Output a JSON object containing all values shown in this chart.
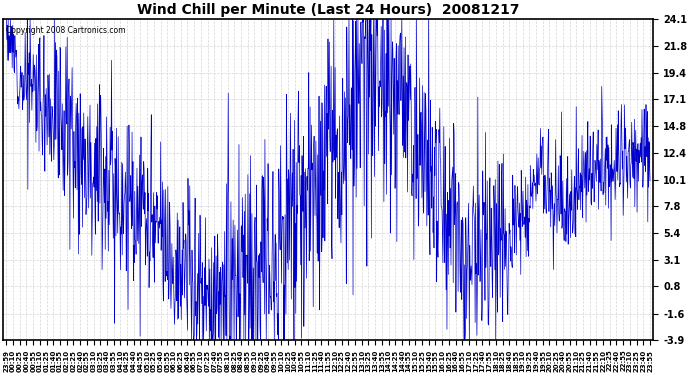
{
  "title": "Wind Chill per Minute (Last 24 Hours)  20081217",
  "copyright_text": "Copyright 2008 Cartronics.com",
  "line_color": "#0000CC",
  "background_color": "#ffffff",
  "plot_bg_color": "#ffffff",
  "grid_color": "#cccccc",
  "yticks": [
    24.1,
    21.8,
    19.4,
    17.1,
    14.8,
    12.4,
    10.1,
    7.8,
    5.4,
    3.1,
    0.8,
    -1.6,
    -3.9
  ],
  "ylim": [
    -3.9,
    24.1
  ],
  "xtick_labels": [
    "23:59",
    "00:10",
    "00:25",
    "00:40",
    "00:55",
    "01:10",
    "01:25",
    "01:40",
    "01:55",
    "02:10",
    "02:25",
    "02:40",
    "02:55",
    "03:10",
    "03:25",
    "03:40",
    "03:55",
    "04:10",
    "04:25",
    "04:40",
    "04:55",
    "05:10",
    "05:25",
    "05:40",
    "05:55",
    "06:10",
    "06:25",
    "06:40",
    "06:55",
    "07:10",
    "07:25",
    "07:40",
    "07:55",
    "08:10",
    "08:25",
    "08:40",
    "08:55",
    "09:10",
    "09:25",
    "09:40",
    "09:55",
    "10:10",
    "10:25",
    "10:40",
    "10:55",
    "11:10",
    "11:25",
    "11:40",
    "11:55",
    "12:10",
    "12:25",
    "12:40",
    "12:55",
    "13:10",
    "13:25",
    "13:40",
    "13:55",
    "14:10",
    "14:25",
    "14:40",
    "14:55",
    "15:10",
    "15:25",
    "15:40",
    "15:55",
    "16:10",
    "16:25",
    "16:40",
    "16:55",
    "17:10",
    "17:25",
    "17:40",
    "17:55",
    "18:10",
    "18:25",
    "18:40",
    "18:55",
    "19:10",
    "19:25",
    "19:40",
    "19:55",
    "20:10",
    "20:25",
    "20:40",
    "20:55",
    "21:10",
    "21:25",
    "21:40",
    "21:55",
    "22:10",
    "22:25",
    "22:40",
    "22:55",
    "23:10",
    "23:25",
    "23:40",
    "23:55"
  ],
  "n_ticks": 97,
  "n_points": 1440,
  "seed": 12
}
